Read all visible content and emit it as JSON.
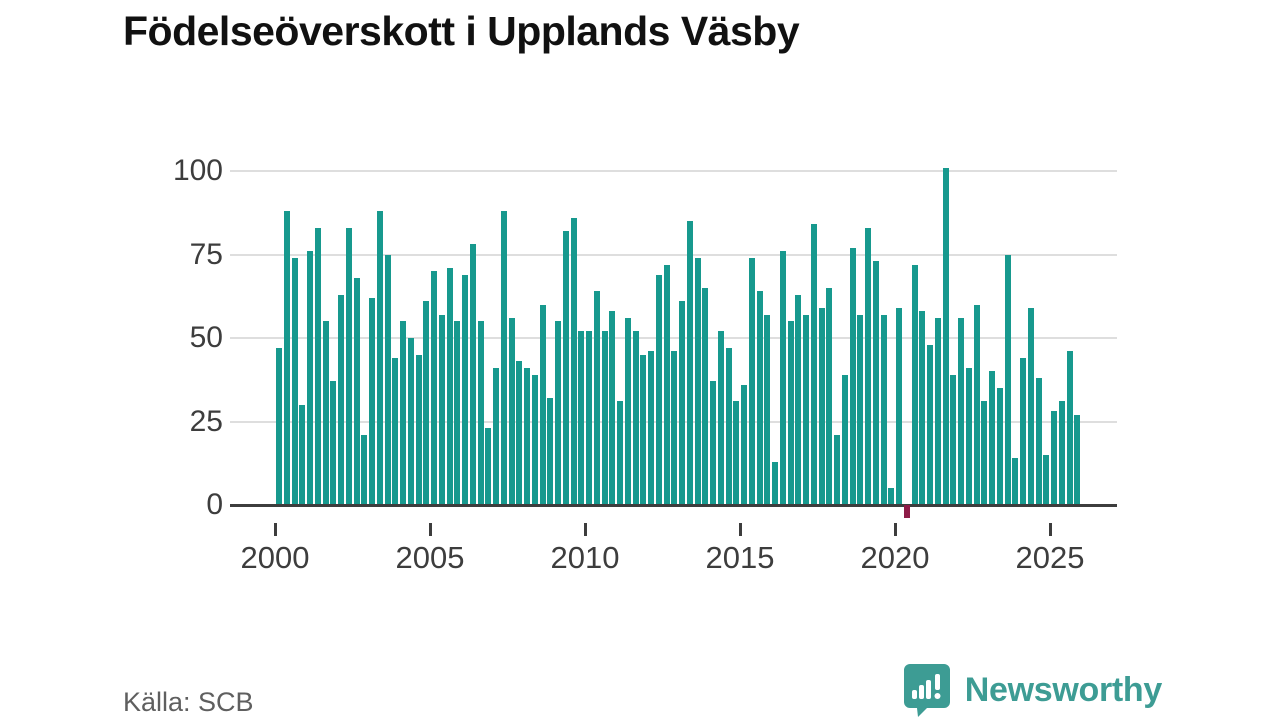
{
  "title": "Födelseöverskott i Upplands Väsby",
  "source": "Källa: SCB",
  "brand": {
    "name": "Newsworthy",
    "color": "#3d9c94"
  },
  "colors": {
    "bar": "#17998e",
    "negative_bar": "#8e1b47",
    "axis": "#3d3d3d",
    "grid": "#dedede",
    "tick_text": "#3d3d3d",
    "title_text": "#111111",
    "source_text": "#5f5f5f"
  },
  "chart_data": {
    "type": "bar",
    "title": "Födelseöverskott i Upplands Väsby",
    "x_frequency": "quarterly",
    "x_start": "2000-Q1",
    "grid": "horizontal",
    "legend": "none",
    "ylim": [
      -8,
      105
    ],
    "y_ticks": [
      0,
      25,
      50,
      75,
      100
    ],
    "x_ticks": [
      {
        "label": "2000",
        "quarter_index": 0
      },
      {
        "label": "2005",
        "quarter_index": 20
      },
      {
        "label": "2010",
        "quarter_index": 40
      },
      {
        "label": "2015",
        "quarter_index": 60
      },
      {
        "label": "2020",
        "quarter_index": 80
      },
      {
        "label": "2025",
        "quarter_index": 100
      }
    ],
    "values": [
      47,
      88,
      74,
      30,
      76,
      83,
      55,
      37,
      63,
      83,
      68,
      21,
      62,
      88,
      75,
      44,
      55,
      50,
      45,
      61,
      70,
      57,
      71,
      55,
      69,
      78,
      55,
      23,
      41,
      88,
      56,
      43,
      41,
      39,
      60,
      32,
      55,
      82,
      86,
      52,
      52,
      64,
      52,
      58,
      31,
      56,
      52,
      45,
      46,
      69,
      72,
      46,
      61,
      85,
      74,
      65,
      37,
      52,
      47,
      31,
      36,
      74,
      64,
      57,
      13,
      76,
      55,
      63,
      57,
      84,
      59,
      65,
      21,
      39,
      77,
      57,
      83,
      73,
      57,
      5,
      59,
      -4,
      72,
      58,
      48,
      56,
      101,
      39,
      56,
      41,
      60,
      31,
      40,
      35,
      75,
      14,
      44,
      59,
      38,
      15,
      28,
      31,
      46,
      27
    ]
  }
}
